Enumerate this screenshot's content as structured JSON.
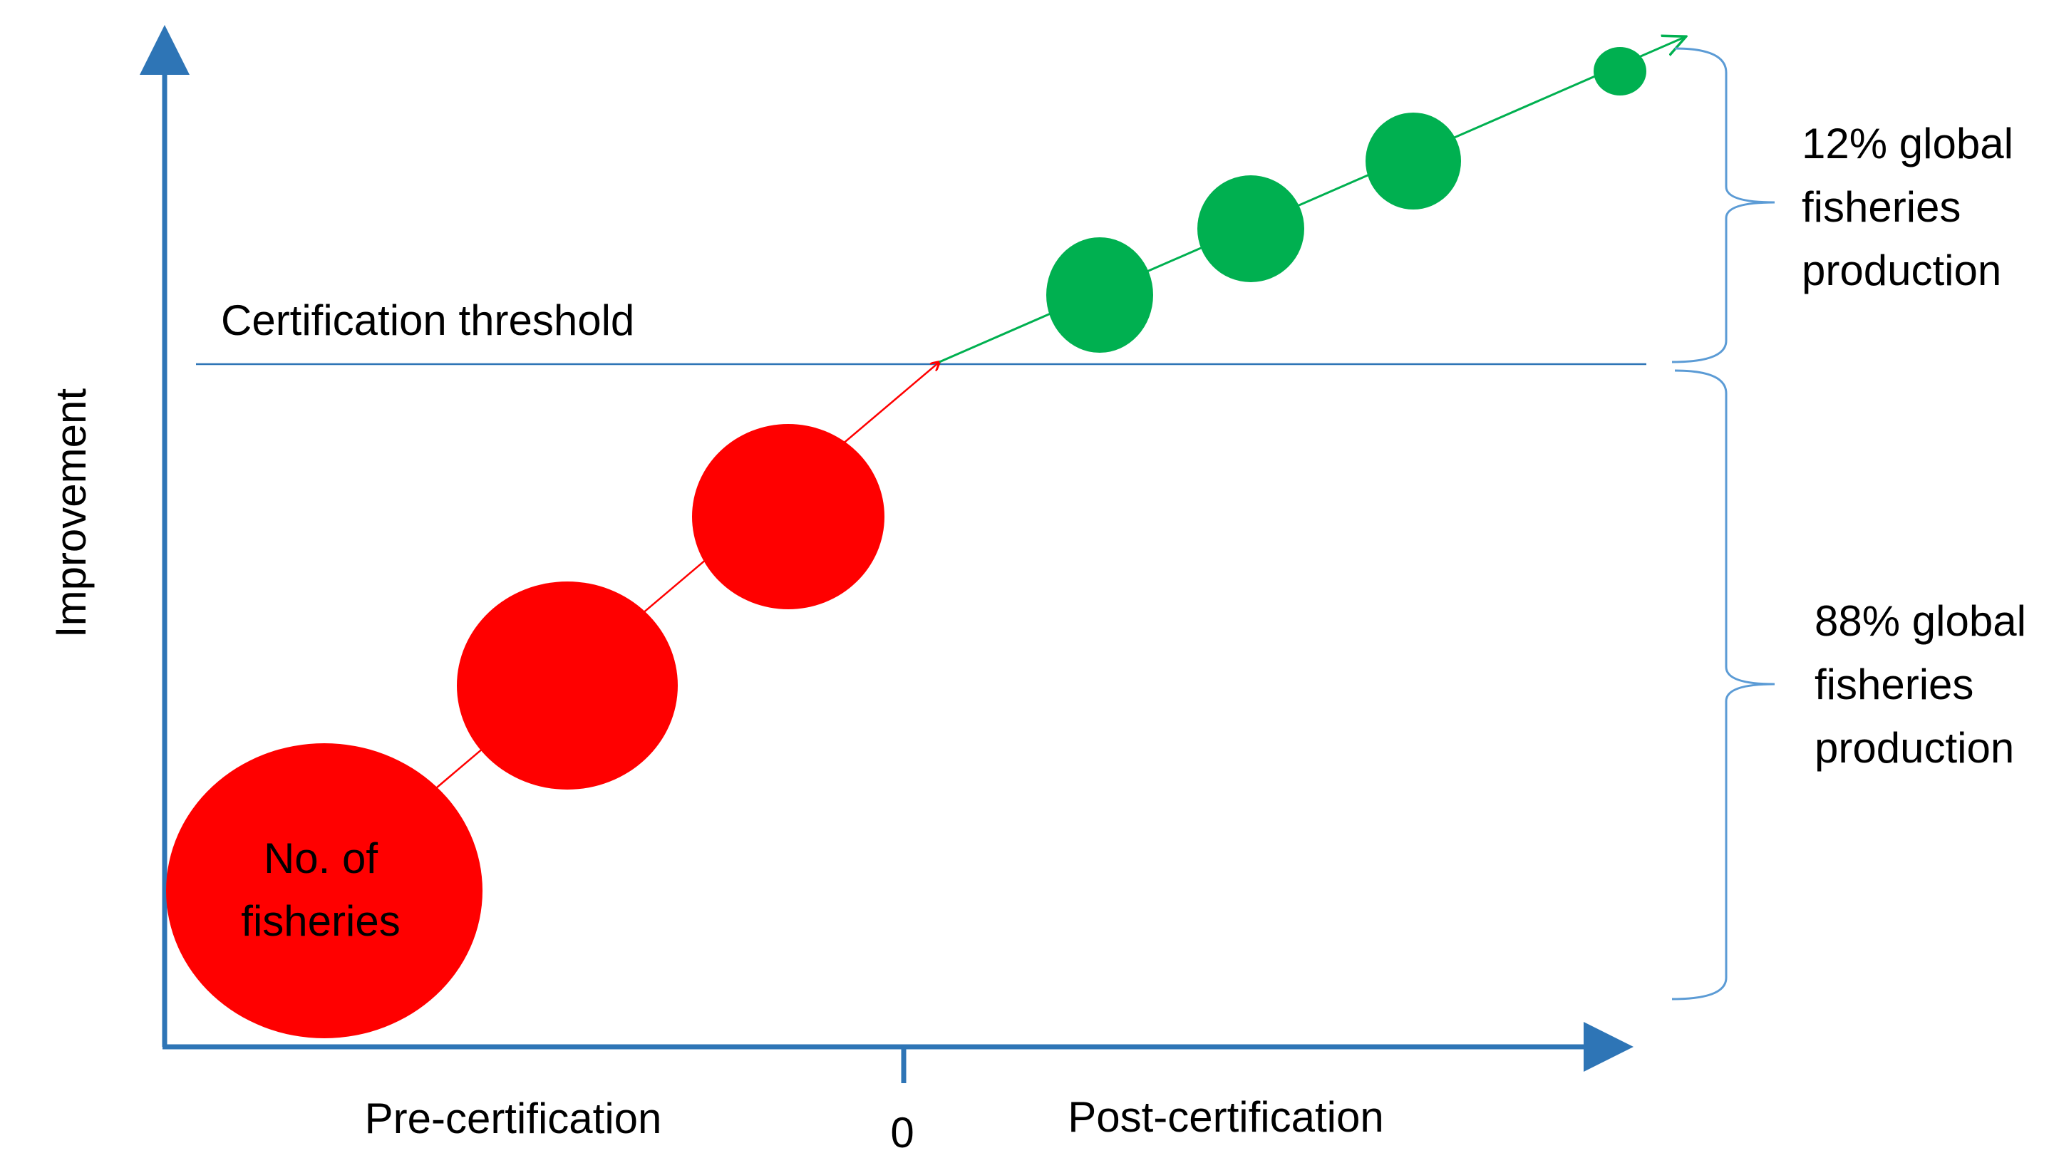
{
  "y_axis_label": "Improvement",
  "threshold_label": "Certification threshold",
  "x_axis": {
    "left_label": "Pre-certification",
    "zero_label": "0",
    "right_label": "Post-certification"
  },
  "bubble_label": [
    "No. of",
    "fisheries"
  ],
  "bracket_upper": [
    "12% global",
    "fisheries",
    "production"
  ],
  "bracket_lower": [
    "88% global",
    "fisheries",
    "production"
  ],
  "colors": {
    "axis": "#2E75B6",
    "threshold": "#2E75B6",
    "bracket": "#5B9BD5",
    "pre_certification": "#FF0000",
    "post_certification": "#00B050"
  }
}
